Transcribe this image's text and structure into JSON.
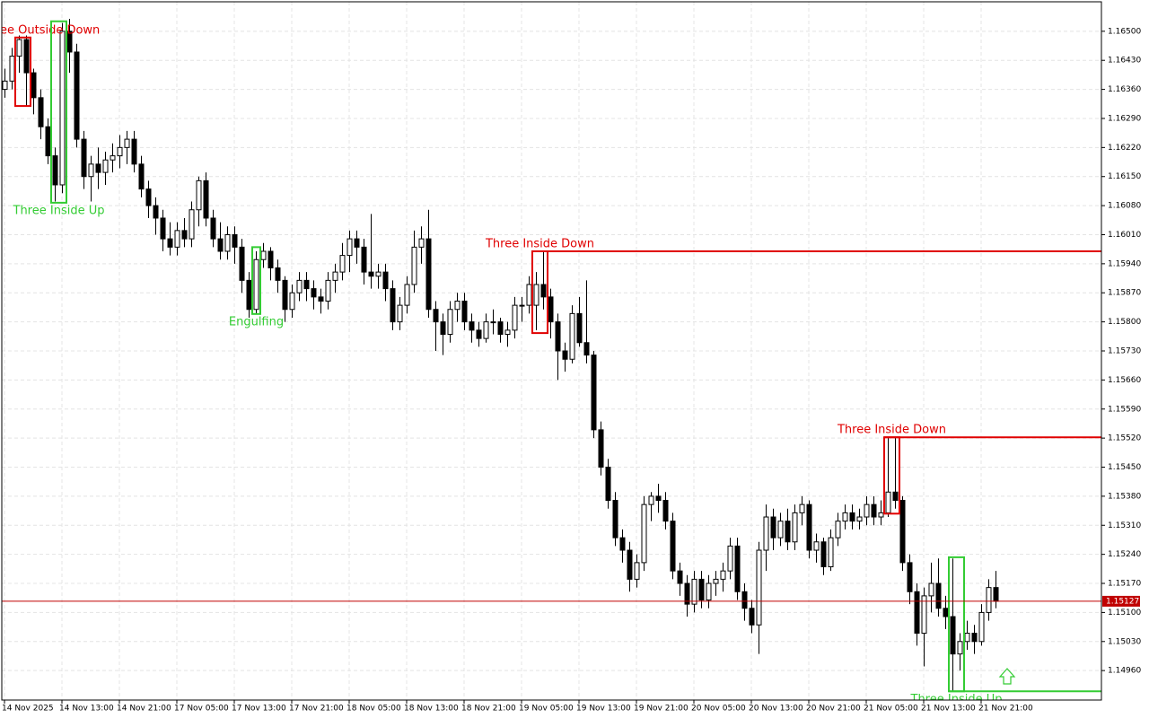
{
  "chart_data": {
    "type": "candlestick",
    "ylim": [
      1.14889,
      1.16571
    ],
    "yticks": [
      {
        "value": 1.1496,
        "label": "1.14960"
      },
      {
        "value": 1.1503,
        "label": "1.15030"
      },
      {
        "value": 1.151,
        "label": "1.15100"
      },
      {
        "value": 1.1517,
        "label": "1.15170"
      },
      {
        "value": 1.1524,
        "label": "1.15240"
      },
      {
        "value": 1.1531,
        "label": "1.15310"
      },
      {
        "value": 1.1538,
        "label": "1.15380"
      },
      {
        "value": 1.1545,
        "label": "1.15450"
      },
      {
        "value": 1.1552,
        "label": "1.15520"
      },
      {
        "value": 1.1559,
        "label": "1.15590"
      },
      {
        "value": 1.1566,
        "label": "1.15660"
      },
      {
        "value": 1.1573,
        "label": "1.15730"
      },
      {
        "value": 1.158,
        "label": "1.15800"
      },
      {
        "value": 1.1587,
        "label": "1.15870"
      },
      {
        "value": 1.1594,
        "label": "1.15940"
      },
      {
        "value": 1.1601,
        "label": "1.16010"
      },
      {
        "value": 1.1608,
        "label": "1.16080"
      },
      {
        "value": 1.1615,
        "label": "1.16150"
      },
      {
        "value": 1.1622,
        "label": "1.16220"
      },
      {
        "value": 1.1629,
        "label": "1.16290"
      },
      {
        "value": 1.1636,
        "label": "1.16360"
      },
      {
        "value": 1.1643,
        "label": "1.16430"
      },
      {
        "value": 1.165,
        "label": "1.16500"
      }
    ],
    "xticks": [
      {
        "value": 0,
        "label": "14 Nov 2025"
      },
      {
        "value": 8,
        "label": "14 Nov 13:00"
      },
      {
        "value": 16,
        "label": "14 Nov 21:00"
      },
      {
        "value": 24,
        "label": "17 Nov 05:00"
      },
      {
        "value": 32,
        "label": "17 Nov 13:00"
      },
      {
        "value": 40,
        "label": "17 Nov 21:00"
      },
      {
        "value": 48,
        "label": "18 Nov 05:00"
      },
      {
        "value": 56,
        "label": "18 Nov 13:00"
      },
      {
        "value": 64,
        "label": "18 Nov 21:00"
      },
      {
        "value": 72,
        "label": "19 Nov 05:00"
      },
      {
        "value": 80,
        "label": "19 Nov 13:00"
      },
      {
        "value": 88,
        "label": "19 Nov 21:00"
      },
      {
        "value": 96,
        "label": "20 Nov 05:00"
      },
      {
        "value": 104,
        "label": "20 Nov 13:00"
      },
      {
        "value": 112,
        "label": "20 Nov 21:00"
      },
      {
        "value": 120,
        "label": "21 Nov 05:00"
      },
      {
        "value": 128,
        "label": "21 Nov 13:00"
      },
      {
        "value": 136,
        "label": "21 Nov 21:00"
      }
    ],
    "grid": true,
    "current_price": {
      "value": 1.15127,
      "label": "1.15127"
    },
    "current_color": "#c00000",
    "up_color": "#ffffff",
    "down_color": "#000000",
    "candles": [
      [
        1.1636,
        1.1641,
        1.1634,
        1.1638
      ],
      [
        1.1638,
        1.1646,
        1.1636,
        1.1644
      ],
      [
        1.1644,
        1.1649,
        1.164,
        1.1648
      ],
      [
        1.1648,
        1.1649,
        1.1632,
        1.164
      ],
      [
        1.164,
        1.1641,
        1.163,
        1.1634
      ],
      [
        1.1634,
        1.1636,
        1.1624,
        1.1627
      ],
      [
        1.1627,
        1.1629,
        1.1618,
        1.162
      ],
      [
        1.162,
        1.1622,
        1.1609,
        1.1613
      ],
      [
        1.1613,
        1.1652,
        1.1611,
        1.165
      ],
      [
        1.165,
        1.1653,
        1.164,
        1.1645
      ],
      [
        1.1645,
        1.1647,
        1.1622,
        1.1624
      ],
      [
        1.1624,
        1.1626,
        1.1612,
        1.1615
      ],
      [
        1.1615,
        1.162,
        1.1609,
        1.1618
      ],
      [
        1.1618,
        1.1622,
        1.1612,
        1.1616
      ],
      [
        1.1616,
        1.1621,
        1.1613,
        1.1619
      ],
      [
        1.1619,
        1.1623,
        1.1616,
        1.162
      ],
      [
        1.162,
        1.1625,
        1.1617,
        1.1622
      ],
      [
        1.1622,
        1.1626,
        1.1618,
        1.1624
      ],
      [
        1.1624,
        1.1626,
        1.1616,
        1.1618
      ],
      [
        1.1618,
        1.162,
        1.161,
        1.1612
      ],
      [
        1.1612,
        1.1614,
        1.1605,
        1.1608
      ],
      [
        1.1608,
        1.161,
        1.1601,
        1.1605
      ],
      [
        1.1605,
        1.1607,
        1.1597,
        1.16
      ],
      [
        1.16,
        1.1604,
        1.1596,
        1.1598
      ],
      [
        1.1598,
        1.1604,
        1.1596,
        1.1602
      ],
      [
        1.1602,
        1.1605,
        1.1598,
        1.16
      ],
      [
        1.16,
        1.1609,
        1.1598,
        1.1607
      ],
      [
        1.1607,
        1.1615,
        1.1603,
        1.1614
      ],
      [
        1.1614,
        1.1616,
        1.1603,
        1.1605
      ],
      [
        1.1605,
        1.1607,
        1.1598,
        1.16
      ],
      [
        1.16,
        1.1604,
        1.1595,
        1.1597
      ],
      [
        1.1597,
        1.1603,
        1.1595,
        1.1601
      ],
      [
        1.1601,
        1.1603,
        1.1594,
        1.1598
      ],
      [
        1.1598,
        1.16,
        1.1587,
        1.159
      ],
      [
        1.159,
        1.1592,
        1.1581,
        1.1583
      ],
      [
        1.1583,
        1.1597,
        1.1582,
        1.1595
      ],
      [
        1.1595,
        1.1599,
        1.1593,
        1.1597
      ],
      [
        1.1597,
        1.1598,
        1.159,
        1.1593
      ],
      [
        1.1593,
        1.1595,
        1.1587,
        1.159
      ],
      [
        1.159,
        1.1591,
        1.158,
        1.1583
      ],
      [
        1.1583,
        1.1589,
        1.1581,
        1.1587
      ],
      [
        1.1587,
        1.1592,
        1.1585,
        1.159
      ],
      [
        1.159,
        1.1592,
        1.1585,
        1.1588
      ],
      [
        1.1588,
        1.159,
        1.1583,
        1.1586
      ],
      [
        1.1586,
        1.1588,
        1.1582,
        1.1585
      ],
      [
        1.1585,
        1.1592,
        1.1583,
        1.159
      ],
      [
        1.159,
        1.1594,
        1.1587,
        1.1592
      ],
      [
        1.1592,
        1.1599,
        1.159,
        1.1596
      ],
      [
        1.1596,
        1.1602,
        1.1592,
        1.16
      ],
      [
        1.16,
        1.1602,
        1.1594,
        1.1598
      ],
      [
        1.1598,
        1.16,
        1.1589,
        1.1592
      ],
      [
        1.1592,
        1.1606,
        1.1588,
        1.1591
      ],
      [
        1.1591,
        1.1594,
        1.1588,
        1.1592
      ],
      [
        1.1592,
        1.1594,
        1.1585,
        1.1588
      ],
      [
        1.1588,
        1.159,
        1.1578,
        1.158
      ],
      [
        1.158,
        1.1586,
        1.1578,
        1.1584
      ],
      [
        1.1584,
        1.1591,
        1.1582,
        1.1589
      ],
      [
        1.1589,
        1.1602,
        1.1587,
        1.1598
      ],
      [
        1.1598,
        1.1603,
        1.1594,
        1.16
      ],
      [
        1.16,
        1.1607,
        1.1581,
        1.1583
      ],
      [
        1.1583,
        1.1585,
        1.1573,
        1.158
      ],
      [
        1.158,
        1.1582,
        1.1572,
        1.1577
      ],
      [
        1.1577,
        1.1585,
        1.1575,
        1.1583
      ],
      [
        1.1583,
        1.1587,
        1.158,
        1.1585
      ],
      [
        1.1585,
        1.1587,
        1.1578,
        1.158
      ],
      [
        1.158,
        1.1582,
        1.1575,
        1.1578
      ],
      [
        1.1578,
        1.158,
        1.1574,
        1.1576
      ],
      [
        1.1576,
        1.1582,
        1.1575,
        1.158
      ],
      [
        1.158,
        1.1583,
        1.1577,
        1.158
      ],
      [
        1.158,
        1.1581,
        1.1575,
        1.1577
      ],
      [
        1.1577,
        1.158,
        1.1574,
        1.1578
      ],
      [
        1.1578,
        1.1586,
        1.1576,
        1.1584
      ],
      [
        1.1584,
        1.1586,
        1.158,
        1.1584
      ],
      [
        1.1584,
        1.1591,
        1.1582,
        1.1589
      ],
      [
        1.1584,
        1.1592,
        1.1578,
        1.1589
      ],
      [
        1.1589,
        1.1597,
        1.1583,
        1.1586
      ],
      [
        1.1586,
        1.1588,
        1.1576,
        1.158
      ],
      [
        1.158,
        1.1582,
        1.1566,
        1.1573
      ],
      [
        1.1573,
        1.1575,
        1.1568,
        1.1571
      ],
      [
        1.1571,
        1.1584,
        1.157,
        1.1582
      ],
      [
        1.1582,
        1.1586,
        1.1574,
        1.1575
      ],
      [
        1.1575,
        1.159,
        1.157,
        1.1572
      ],
      [
        1.1572,
        1.1573,
        1.1552,
        1.1554
      ],
      [
        1.1554,
        1.1556,
        1.1543,
        1.1545
      ],
      [
        1.1545,
        1.1547,
        1.1535,
        1.1537
      ],
      [
        1.1537,
        1.1539,
        1.1526,
        1.1528
      ],
      [
        1.1528,
        1.153,
        1.1522,
        1.1525
      ],
      [
        1.1525,
        1.1527,
        1.1515,
        1.1518
      ],
      [
        1.1518,
        1.1524,
        1.1516,
        1.1522
      ],
      [
        1.1522,
        1.1538,
        1.152,
        1.1536
      ],
      [
        1.1536,
        1.1539,
        1.1532,
        1.1538
      ],
      [
        1.1538,
        1.1541,
        1.1534,
        1.1537
      ],
      [
        1.1537,
        1.1539,
        1.153,
        1.1532
      ],
      [
        1.1532,
        1.1534,
        1.1518,
        1.152
      ],
      [
        1.152,
        1.1522,
        1.1514,
        1.1517
      ],
      [
        1.1517,
        1.1519,
        1.1509,
        1.1512
      ],
      [
        1.1512,
        1.152,
        1.151,
        1.1518
      ],
      [
        1.1518,
        1.152,
        1.1511,
        1.1513
      ],
      [
        1.1513,
        1.1519,
        1.1511,
        1.1517
      ],
      [
        1.1517,
        1.152,
        1.1514,
        1.1518
      ],
      [
        1.1518,
        1.1522,
        1.1515,
        1.152
      ],
      [
        1.152,
        1.1528,
        1.1518,
        1.1526
      ],
      [
        1.1526,
        1.1528,
        1.1513,
        1.1515
      ],
      [
        1.1515,
        1.1517,
        1.1508,
        1.1511
      ],
      [
        1.1511,
        1.1513,
        1.1505,
        1.1507
      ],
      [
        1.1507,
        1.1527,
        1.15,
        1.1525
      ],
      [
        1.1525,
        1.1536,
        1.152,
        1.1533
      ],
      [
        1.1533,
        1.1535,
        1.1525,
        1.1528
      ],
      [
        1.1528,
        1.1534,
        1.1526,
        1.1532
      ],
      [
        1.1532,
        1.1535,
        1.1525,
        1.1527
      ],
      [
        1.1527,
        1.1536,
        1.1525,
        1.1534
      ],
      [
        1.1534,
        1.1538,
        1.1531,
        1.1536
      ],
      [
        1.1536,
        1.1537,
        1.1523,
        1.1525
      ],
      [
        1.1525,
        1.1529,
        1.1522,
        1.1527
      ],
      [
        1.1527,
        1.1528,
        1.1519,
        1.1521
      ],
      [
        1.1521,
        1.153,
        1.152,
        1.1528
      ],
      [
        1.1528,
        1.1534,
        1.1526,
        1.1532
      ],
      [
        1.1532,
        1.1536,
        1.153,
        1.1534
      ],
      [
        1.1534,
        1.1536,
        1.153,
        1.1532
      ],
      [
        1.1532,
        1.1535,
        1.153,
        1.1533
      ],
      [
        1.1533,
        1.1538,
        1.1531,
        1.1536
      ],
      [
        1.1536,
        1.1538,
        1.1531,
        1.1533
      ],
      [
        1.1533,
        1.1537,
        1.1531,
        1.1534
      ],
      [
        1.1534,
        1.1552,
        1.1533,
        1.1539
      ],
      [
        1.1539,
        1.1552,
        1.1535,
        1.1537
      ],
      [
        1.1537,
        1.1538,
        1.152,
        1.1522
      ],
      [
        1.1522,
        1.1524,
        1.1512,
        1.1515
      ],
      [
        1.1515,
        1.1517,
        1.1502,
        1.1505
      ],
      [
        1.1505,
        1.1516,
        1.1497,
        1.1514
      ],
      [
        1.1514,
        1.1522,
        1.151,
        1.1517
      ],
      [
        1.1517,
        1.1523,
        1.1509,
        1.1511
      ],
      [
        1.1511,
        1.1514,
        1.1506,
        1.1509
      ],
      [
        1.1509,
        1.1523,
        1.1491,
        1.15
      ],
      [
        1.15,
        1.1505,
        1.1496,
        1.1503
      ],
      [
        1.1503,
        1.1508,
        1.1501,
        1.1505
      ],
      [
        1.1505,
        1.1507,
        1.15,
        1.1503
      ],
      [
        1.1503,
        1.1512,
        1.1502,
        1.151
      ],
      [
        1.151,
        1.1518,
        1.1508,
        1.1516
      ],
      [
        1.1516,
        1.152,
        1.1511,
        1.15127
      ]
    ],
    "patterns": [
      {
        "label": "ee Outside Down",
        "color": "#e00000",
        "bullish": false,
        "start": 2,
        "end": 3,
        "high": 1.16485,
        "low": 1.1632
      },
      {
        "label": "Three Inside Up",
        "color": "#33cc33",
        "bullish": true,
        "start": 7,
        "end": 8,
        "high": 1.16524,
        "low": 1.16087
      },
      {
        "label": "Engulfing",
        "color": "#33cc33",
        "bullish": true,
        "start": 35,
        "end": 35,
        "high": 1.1598,
        "low": 1.15819
      },
      {
        "label": "Three Inside Down",
        "color": "#e00000",
        "bullish": false,
        "start": 74,
        "end": 75,
        "high": 1.1597,
        "low": 1.15773,
        "level": 1.1597
      },
      {
        "label": "Three Inside Down",
        "color": "#e00000",
        "bullish": false,
        "start": 123,
        "end": 124,
        "high": 1.15522,
        "low": 1.15338,
        "level": 1.15522
      },
      {
        "label": "Three Inside Up",
        "color": "#33cc33",
        "bullish": true,
        "start": 132,
        "end": 133,
        "high": 1.15233,
        "low": 1.1491,
        "level": 1.1491
      }
    ]
  }
}
